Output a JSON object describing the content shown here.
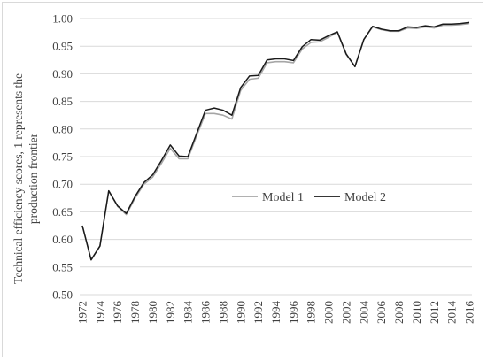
{
  "chart_data": {
    "type": "line",
    "title": "",
    "ylabel_lines": [
      "Technical efficiency  scores, 1 represents the",
      "production frontier"
    ],
    "xlabel": "",
    "ylim": [
      0.5,
      1.0
    ],
    "yticks": [
      "0.50",
      "0.55",
      "0.60",
      "0.65",
      "0.70",
      "0.75",
      "0.80",
      "0.85",
      "0.90",
      "0.95",
      "1.00"
    ],
    "xticks": [
      "1972",
      "1974",
      "1976",
      "1978",
      "1980",
      "1982",
      "1984",
      "1986",
      "1988",
      "1990",
      "1992",
      "1994",
      "1996",
      "1998",
      "2000",
      "2002",
      "2004",
      "2006",
      "2008",
      "2010",
      "2012",
      "2014",
      "2016"
    ],
    "grid": "horizontal",
    "legend": "center",
    "x": [
      1972,
      1973,
      1974,
      1975,
      1976,
      1977,
      1978,
      1979,
      1980,
      1981,
      1982,
      1983,
      1984,
      1985,
      1986,
      1987,
      1988,
      1989,
      1990,
      1991,
      1992,
      1993,
      1994,
      1995,
      1996,
      1997,
      1998,
      1999,
      2000,
      2001,
      2002,
      2003,
      2004,
      2005,
      2006,
      2007,
      2008,
      2009,
      2010,
      2011,
      2012,
      2013,
      2014,
      2015,
      2016
    ],
    "series": [
      {
        "name": "Model 1",
        "color": "#a6a6a6",
        "values": [
          0.625,
          0.563,
          0.588,
          0.688,
          0.66,
          0.645,
          0.675,
          0.7,
          0.713,
          0.738,
          0.765,
          0.746,
          0.746,
          0.788,
          0.828,
          0.828,
          0.825,
          0.818,
          0.87,
          0.89,
          0.892,
          0.92,
          0.922,
          0.922,
          0.92,
          0.945,
          0.957,
          0.958,
          0.966,
          0.975,
          0.935,
          0.913,
          0.962,
          0.985,
          0.98,
          0.977,
          0.977,
          0.983,
          0.982,
          0.985,
          0.983,
          0.988,
          0.988,
          0.989,
          0.991
        ]
      },
      {
        "name": "Model 2",
        "color": "#1a1a1a",
        "values": [
          0.625,
          0.563,
          0.588,
          0.688,
          0.661,
          0.647,
          0.678,
          0.703,
          0.717,
          0.743,
          0.771,
          0.751,
          0.75,
          0.792,
          0.834,
          0.838,
          0.834,
          0.825,
          0.875,
          0.896,
          0.897,
          0.925,
          0.927,
          0.927,
          0.924,
          0.949,
          0.962,
          0.961,
          0.969,
          0.976,
          0.936,
          0.913,
          0.962,
          0.986,
          0.981,
          0.978,
          0.978,
          0.985,
          0.984,
          0.987,
          0.985,
          0.99,
          0.99,
          0.991,
          0.993
        ]
      }
    ]
  },
  "colors": {
    "gridline": "#d9d9d9",
    "text": "#404040",
    "frame_border": "#d9d9d9"
  }
}
